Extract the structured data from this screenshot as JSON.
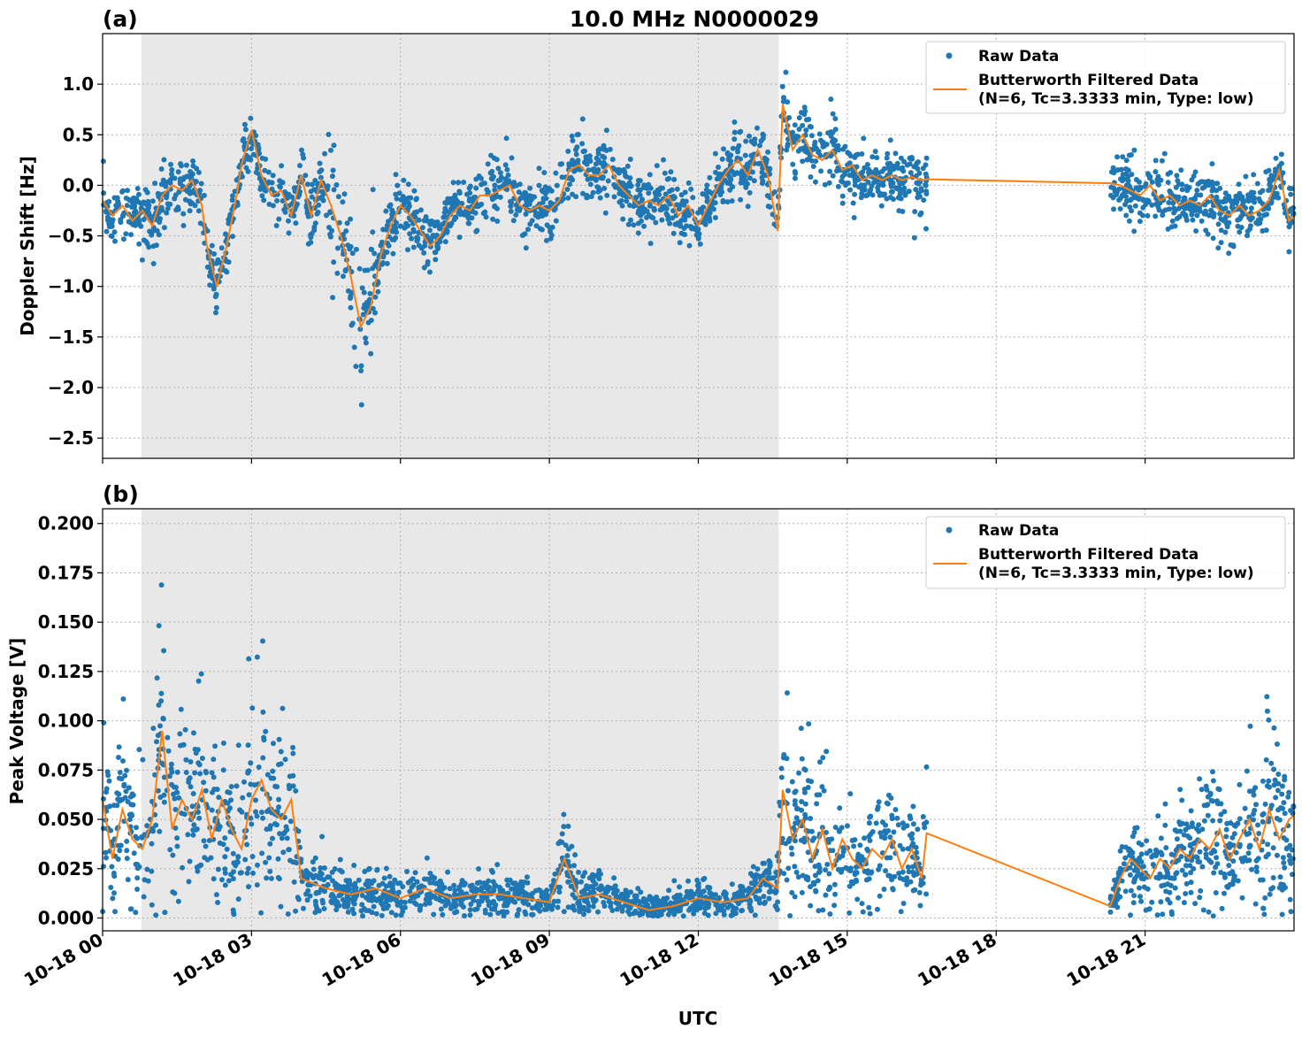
{
  "figure": {
    "title": "10.0 MHz N0000029",
    "xlabel": "UTC"
  },
  "colors": {
    "raw": "#1f77b4",
    "filtered": "#ff7f0e",
    "night_shade": "#e8e8e8"
  },
  "chart_data": [
    {
      "panel": "(a)",
      "type": "scatter",
      "ylabel": "Doppler Shift [Hz]",
      "ylim": [
        -2.7,
        1.5
      ],
      "yticks": [
        1.0,
        0.5,
        0.0,
        -0.5,
        -1.0,
        -1.5,
        -2.0,
        -2.5
      ],
      "ytick_labels": [
        "1.0",
        "0.5",
        "0.0",
        "−0.5",
        "−1.0",
        "−1.5",
        "−2.0",
        "−2.5"
      ],
      "xlim_hours": [
        0,
        24
      ],
      "xticks_hours": [
        0,
        3,
        6,
        9,
        12,
        15,
        18,
        21
      ],
      "xtick_labels": [
        "10-18 00",
        "10-18 03",
        "10-18 06",
        "10-18 09",
        "10-18 12",
        "10-18 15",
        "10-18 18",
        "10-18 21"
      ],
      "shaded_interval_hours": [
        0.78,
        13.62
      ],
      "grid": true,
      "legend_placement": "top-right",
      "legend": {
        "raw": "Raw Data",
        "filtered_line1": "Butterworth Filtered Data",
        "filtered_line2": "(N=6, Tc=3.3333 min, Type: low)"
      },
      "data_gap_hours": [
        16.6,
        20.3
      ],
      "filtered_series": {
        "name": "Butterworth Filtered Data",
        "x_hours": [
          0.0,
          0.2,
          0.4,
          0.6,
          0.8,
          1.0,
          1.2,
          1.4,
          1.6,
          1.8,
          2.0,
          2.1,
          2.3,
          2.5,
          2.7,
          2.8,
          3.0,
          3.2,
          3.4,
          3.6,
          3.8,
          4.0,
          4.2,
          4.4,
          4.6,
          4.8,
          5.0,
          5.2,
          5.4,
          5.6,
          5.8,
          6.0,
          6.2,
          6.4,
          6.6,
          6.8,
          7.0,
          7.2,
          7.4,
          7.6,
          7.8,
          8.0,
          8.2,
          8.4,
          8.6,
          8.8,
          9.0,
          9.2,
          9.4,
          9.6,
          9.8,
          10.0,
          10.2,
          10.4,
          10.6,
          10.8,
          11.0,
          11.2,
          11.4,
          11.6,
          11.8,
          12.0,
          12.2,
          12.4,
          12.6,
          12.8,
          13.0,
          13.2,
          13.4,
          13.6,
          13.7,
          13.9,
          14.1,
          14.3,
          14.5,
          14.7,
          14.9,
          15.1,
          15.3,
          15.5,
          15.7,
          15.9,
          16.1,
          16.3,
          16.5,
          16.6,
          20.3,
          20.5,
          20.7,
          20.9,
          21.1,
          21.3,
          21.5,
          21.7,
          21.9,
          22.1,
          22.3,
          22.5,
          22.7,
          22.9,
          23.1,
          23.3,
          23.5,
          23.7,
          23.9,
          24.0
        ],
        "y": [
          -0.15,
          -0.3,
          -0.2,
          -0.35,
          -0.25,
          -0.4,
          -0.1,
          0.0,
          -0.05,
          0.05,
          -0.2,
          -0.6,
          -1.0,
          -0.6,
          -0.1,
          0.2,
          0.55,
          0.1,
          -0.1,
          -0.05,
          -0.3,
          0.1,
          -0.3,
          0.05,
          -0.2,
          -0.5,
          -0.9,
          -1.4,
          -1.2,
          -0.7,
          -0.4,
          -0.2,
          -0.3,
          -0.45,
          -0.6,
          -0.5,
          -0.3,
          -0.2,
          -0.25,
          -0.1,
          -0.1,
          -0.05,
          0.0,
          -0.2,
          -0.25,
          -0.2,
          -0.25,
          -0.15,
          0.15,
          0.2,
          0.1,
          0.1,
          0.2,
          0.0,
          -0.1,
          -0.2,
          -0.15,
          -0.2,
          -0.1,
          -0.3,
          -0.2,
          -0.4,
          -0.2,
          0.0,
          0.15,
          0.25,
          0.1,
          0.35,
          0.1,
          -0.45,
          0.8,
          0.35,
          0.5,
          0.3,
          0.25,
          0.35,
          0.15,
          0.2,
          0.05,
          0.1,
          0.05,
          0.1,
          0.05,
          0.08,
          0.05,
          0.06,
          0.02,
          0.0,
          -0.05,
          -0.1,
          0.0,
          -0.15,
          -0.1,
          -0.2,
          -0.15,
          -0.2,
          -0.1,
          -0.25,
          -0.3,
          -0.2,
          -0.3,
          -0.25,
          -0.15,
          0.15,
          -0.35,
          -0.3
        ]
      }
    },
    {
      "panel": "(b)",
      "type": "scatter",
      "ylabel": "Peak Voltage [V]",
      "ylim": [
        -0.0065,
        0.2075
      ],
      "yticks": [
        0.2,
        0.175,
        0.15,
        0.125,
        0.1,
        0.075,
        0.05,
        0.025,
        0.0
      ],
      "ytick_labels": [
        "0.200",
        "0.175",
        "0.150",
        "0.125",
        "0.100",
        "0.075",
        "0.050",
        "0.025",
        "0.000"
      ],
      "xlim_hours": [
        0,
        24
      ],
      "xticks_hours": [
        0,
        3,
        6,
        9,
        12,
        15,
        18,
        21
      ],
      "xtick_labels": [
        "10-18 00",
        "10-18 03",
        "10-18 06",
        "10-18 09",
        "10-18 12",
        "10-18 15",
        "10-18 18",
        "10-18 21"
      ],
      "shaded_interval_hours": [
        0.78,
        13.62
      ],
      "grid": true,
      "legend_placement": "top-right",
      "legend": {
        "raw": "Raw Data",
        "filtered_line1": "Butterworth Filtered Data",
        "filtered_line2": "(N=6, Tc=3.3333 min, Type: low)"
      },
      "data_gap_hours": [
        16.6,
        20.3
      ],
      "filtered_series": {
        "name": "Butterworth Filtered Data",
        "x_hours": [
          0.0,
          0.2,
          0.4,
          0.6,
          0.8,
          1.0,
          1.2,
          1.4,
          1.6,
          1.8,
          2.0,
          2.2,
          2.4,
          2.6,
          2.8,
          3.0,
          3.2,
          3.4,
          3.6,
          3.8,
          4.0,
          4.5,
          5.0,
          5.5,
          6.0,
          6.5,
          7.0,
          7.5,
          8.0,
          8.5,
          9.0,
          9.3,
          9.6,
          10.0,
          10.5,
          11.0,
          11.5,
          12.0,
          12.5,
          13.0,
          13.3,
          13.6,
          13.7,
          13.9,
          14.1,
          14.3,
          14.5,
          14.7,
          14.9,
          15.1,
          15.3,
          15.5,
          15.7,
          15.9,
          16.1,
          16.3,
          16.5,
          16.6,
          20.3,
          20.5,
          20.7,
          20.9,
          21.1,
          21.3,
          21.5,
          21.7,
          21.9,
          22.1,
          22.3,
          22.5,
          22.7,
          22.9,
          23.1,
          23.3,
          23.5,
          23.7,
          23.9,
          24.0
        ],
        "y": [
          0.06,
          0.03,
          0.055,
          0.04,
          0.035,
          0.05,
          0.095,
          0.045,
          0.06,
          0.05,
          0.065,
          0.04,
          0.06,
          0.045,
          0.035,
          0.06,
          0.07,
          0.055,
          0.05,
          0.06,
          0.02,
          0.015,
          0.012,
          0.015,
          0.01,
          0.015,
          0.01,
          0.012,
          0.012,
          0.01,
          0.008,
          0.03,
          0.01,
          0.012,
          0.008,
          0.004,
          0.006,
          0.01,
          0.008,
          0.01,
          0.02,
          0.015,
          0.065,
          0.04,
          0.05,
          0.03,
          0.045,
          0.025,
          0.04,
          0.03,
          0.025,
          0.035,
          0.03,
          0.04,
          0.025,
          0.035,
          0.02,
          0.043,
          0.006,
          0.02,
          0.03,
          0.025,
          0.02,
          0.03,
          0.025,
          0.035,
          0.03,
          0.04,
          0.035,
          0.045,
          0.03,
          0.04,
          0.05,
          0.035,
          0.055,
          0.04,
          0.05,
          0.052
        ]
      }
    }
  ]
}
